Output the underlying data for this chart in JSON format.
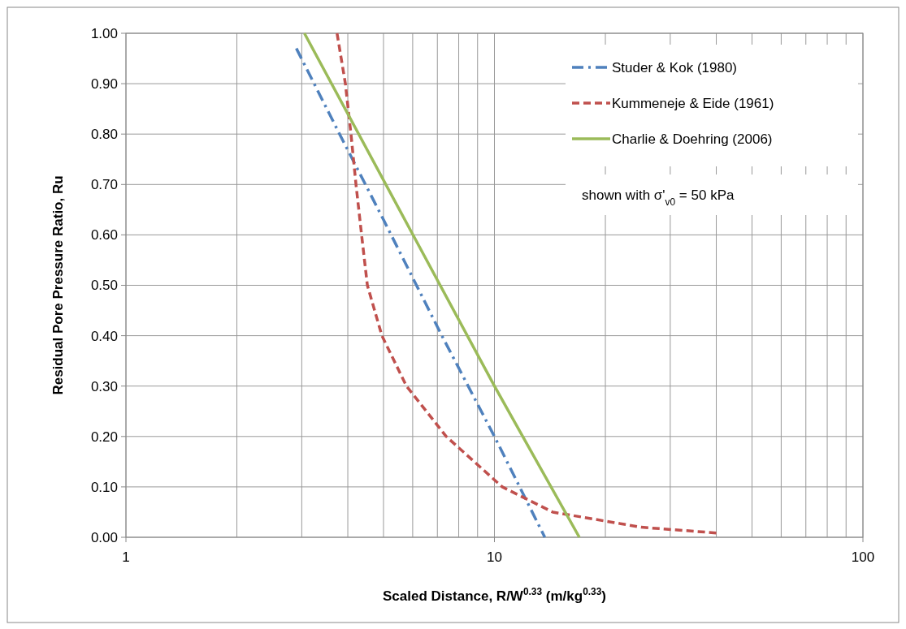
{
  "chart_data": {
    "type": "line",
    "xlabel": "Scaled Distance, R/W$^{0.33}$ (m/kg$^{0.33}$)",
    "ylabel": "Residual Pore Pressure Ratio, Ru",
    "annotations": [
      "shown with σ'$_{v0}$ = 50 kPa"
    ],
    "log": "x",
    "grid": true,
    "legend": "top right",
    "xlim": [
      1,
      100
    ],
    "xticks": [
      1,
      10,
      100
    ],
    "ylim": [
      0,
      1
    ],
    "yticks": [
      {
        "value": 0,
        "label": "0.00"
      },
      {
        "value": 0.1,
        "label": "0.10"
      },
      {
        "value": 0.2,
        "label": "0.20"
      },
      {
        "value": 0.3,
        "label": "0.30"
      },
      {
        "value": 0.4,
        "label": "0.40"
      },
      {
        "value": 0.5,
        "label": "0.50"
      },
      {
        "value": 0.6,
        "label": "0.60"
      },
      {
        "value": 0.7,
        "label": "0.70"
      },
      {
        "value": 0.8,
        "label": "0.80"
      },
      {
        "value": 0.9,
        "label": "0.90"
      },
      {
        "value": 1,
        "label": "1.00"
      }
    ],
    "series": [
      {
        "name": "Studer & Kok (1980)",
        "color": "#4f81bd",
        "line_style": "dashdot",
        "x": [
          2.9,
          3.8,
          5.0,
          7.2,
          10,
          13.7
        ],
        "values": [
          0.97,
          0.8,
          0.63,
          0.4,
          0.2,
          0
        ]
      },
      {
        "name": "Kummeneje & Eide (1961)",
        "color": "#c0504d",
        "line_style": "dashed",
        "x": [
          3.74,
          3.94,
          4.08,
          4.21,
          4.36,
          4.52,
          4.95,
          5.77,
          7.4,
          10.5,
          14.4,
          25,
          41
        ],
        "values": [
          1.0,
          0.9,
          0.8,
          0.7,
          0.6,
          0.5,
          0.4,
          0.3,
          0.2,
          0.1,
          0.05,
          0.02,
          0.008
        ]
      },
      {
        "name": "Charlie & Doehring (2006)",
        "color": "#9bbb59",
        "line_style": "solid",
        "x": [
          3.05,
          10,
          17
        ],
        "values": [
          1.0,
          0.3,
          0
        ]
      }
    ]
  }
}
